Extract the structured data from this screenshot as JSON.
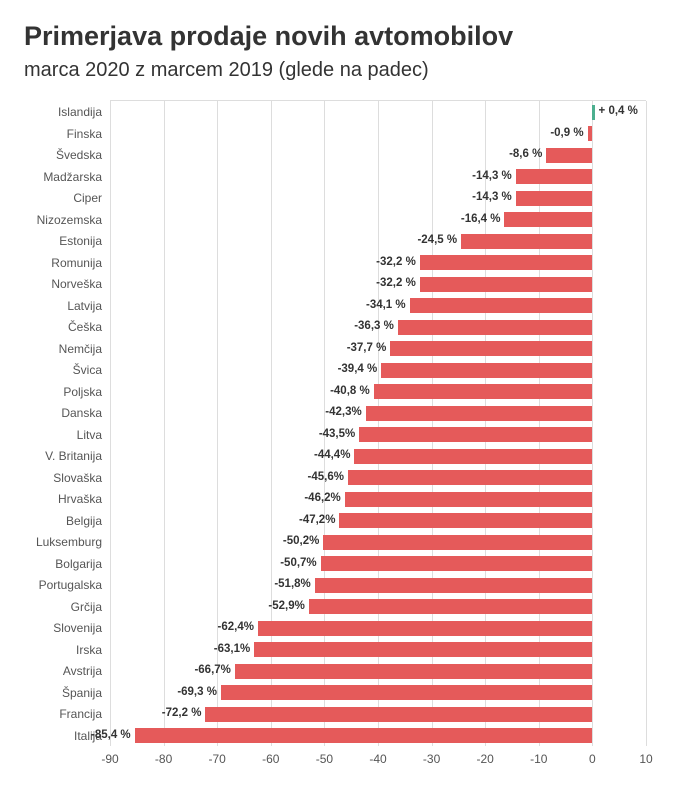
{
  "chart": {
    "type": "bar-horizontal",
    "title": "Primerjava prodaje novih avtomobilov",
    "subtitle": "marca 2020 z marcem 2019 (glede na padec)",
    "title_fontsize": 27,
    "subtitle_fontsize": 20,
    "title_color": "#333333",
    "background_color": "#ffffff",
    "grid_color": "#dddddd",
    "label_fontsize": 12,
    "value_label_fontsize": 11.5,
    "bar_color_neg": "#e55a5a",
    "bar_color_pos": "#4caf8f",
    "xlim": [
      -90,
      10
    ],
    "xtick_step": 10,
    "xticks": [
      -90,
      -80,
      -70,
      -60,
      -50,
      -40,
      -30,
      -20,
      -10,
      0,
      10
    ],
    "bar_height_ratio": 0.7,
    "data": [
      {
        "label": "Islandija",
        "value": 0.4,
        "display": "+ 0,4 %"
      },
      {
        "label": "Finska",
        "value": -0.9,
        "display": "-0,9 %"
      },
      {
        "label": "Švedska",
        "value": -8.6,
        "display": "-8,6 %"
      },
      {
        "label": "Madžarska",
        "value": -14.3,
        "display": "-14,3 %"
      },
      {
        "label": "Ciper",
        "value": -14.3,
        "display": "-14,3 %"
      },
      {
        "label": "Nizozemska",
        "value": -16.4,
        "display": "-16,4 %"
      },
      {
        "label": "Estonija",
        "value": -24.5,
        "display": "-24,5 %"
      },
      {
        "label": "Romunija",
        "value": -32.2,
        "display": "-32,2 %"
      },
      {
        "label": "Norveška",
        "value": -32.2,
        "display": "-32,2 %"
      },
      {
        "label": "Latvija",
        "value": -34.1,
        "display": "-34,1 %"
      },
      {
        "label": "Češka",
        "value": -36.3,
        "display": "-36,3 %"
      },
      {
        "label": "Nemčija",
        "value": -37.7,
        "display": "-37,7 %"
      },
      {
        "label": "Švica",
        "value": -39.4,
        "display": "-39,4 %"
      },
      {
        "label": "Poljska",
        "value": -40.8,
        "display": "-40,8 %"
      },
      {
        "label": "Danska",
        "value": -42.3,
        "display": "-42,3%"
      },
      {
        "label": "Litva",
        "value": -43.5,
        "display": "-43,5%"
      },
      {
        "label": "V. Britanija",
        "value": -44.4,
        "display": "-44,4%"
      },
      {
        "label": "Slovaška",
        "value": -45.6,
        "display": "-45,6%"
      },
      {
        "label": "Hrvaška",
        "value": -46.2,
        "display": "-46,2%"
      },
      {
        "label": "Belgija",
        "value": -47.2,
        "display": "-47,2%"
      },
      {
        "label": "Luksemburg",
        "value": -50.2,
        "display": "-50,2%"
      },
      {
        "label": "Bolgarija",
        "value": -50.7,
        "display": "-50,7%"
      },
      {
        "label": "Portugalska",
        "value": -51.8,
        "display": "-51,8%"
      },
      {
        "label": "Grčija",
        "value": -52.9,
        "display": "-52,9%"
      },
      {
        "label": "Slovenija",
        "value": -62.4,
        "display": "-62,4%"
      },
      {
        "label": "Irska",
        "value": -63.1,
        "display": "-63,1%"
      },
      {
        "label": "Avstrija",
        "value": -66.7,
        "display": "-66,7%"
      },
      {
        "label": "Španija",
        "value": -69.3,
        "display": "-69,3 %"
      },
      {
        "label": "Francija",
        "value": -72.2,
        "display": "-72,2 %"
      },
      {
        "label": "Italija",
        "value": -85.4,
        "display": "-85,4 %"
      }
    ]
  }
}
